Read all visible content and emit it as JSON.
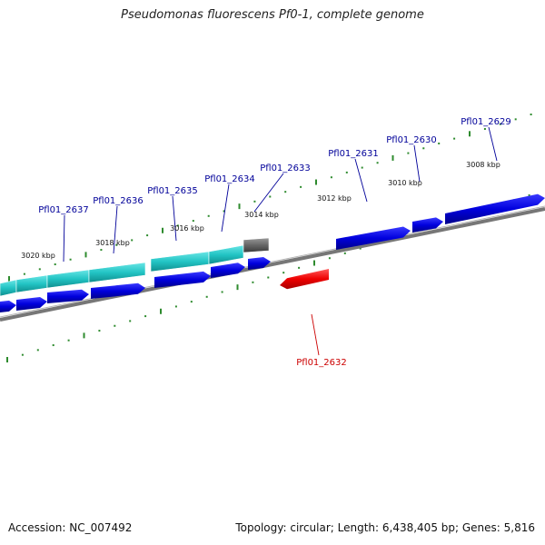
{
  "title": "Pseudomonas fluorescens Pf0-1, complete genome",
  "footer": {
    "accession": "Accession: NC_007492",
    "topology": "Topology: circular; Length: 6,438,405 bp; Genes: 5,816"
  },
  "ticks": [
    {
      "label": "3008 kbp"
    },
    {
      "label": "3010 kbp"
    },
    {
      "label": "3012 kbp"
    },
    {
      "label": "3014 kbp"
    },
    {
      "label": "3016 kbp"
    },
    {
      "label": "3018 kbp"
    },
    {
      "label": "3020 kbp"
    }
  ],
  "genes": [
    {
      "label": "Pfl01_2629",
      "strand": "+"
    },
    {
      "label": "Pfl01_2630",
      "strand": "+"
    },
    {
      "label": "Pfl01_2631",
      "strand": "+"
    },
    {
      "label": "Pfl01_2632",
      "strand": "-"
    },
    {
      "label": "Pfl01_2633",
      "strand": "+"
    },
    {
      "label": "Pfl01_2634",
      "strand": "+"
    },
    {
      "label": "Pfl01_2635",
      "strand": "+"
    },
    {
      "label": "Pfl01_2636",
      "strand": "+"
    },
    {
      "label": "Pfl01_2637",
      "strand": "+"
    }
  ],
  "colors": {
    "forward_cds": "#0000dd",
    "reverse_cds": "#ee0000",
    "cog_band": "#22c4c4",
    "other_band": "#666666",
    "backbone": "#888888",
    "tick": "#2e8b2e",
    "forward_label": "#000099",
    "reverse_label": "#cc0000"
  }
}
